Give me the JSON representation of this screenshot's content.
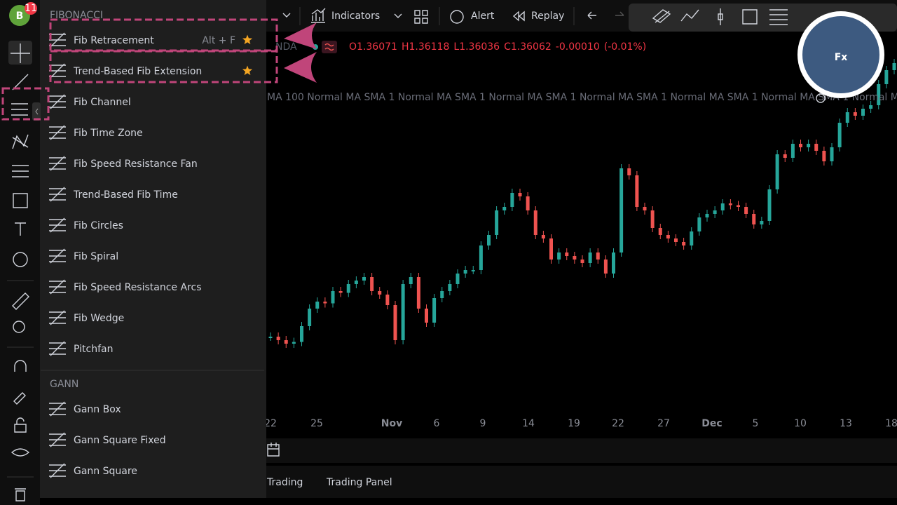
{
  "user": {
    "avatar": "B",
    "notifications": "11"
  },
  "toolbar": {
    "indicators": "Indicators",
    "alert": "Alert",
    "replay": "Replay"
  },
  "menu": {
    "sections": [
      {
        "title": "FIBONACCI",
        "items": [
          {
            "label": "Fib Retracement",
            "shortcut": "Alt + F",
            "favorite": true
          },
          {
            "label": "Trend-Based Fib Extension",
            "favorite": true
          },
          {
            "label": "Fib Channel",
            "favorite": false
          },
          {
            "label": "Fib Time Zone",
            "favorite": false
          },
          {
            "label": "Fib Speed Resistance Fan",
            "favorite": false
          },
          {
            "label": "Trend-Based Fib Time",
            "favorite": false
          },
          {
            "label": "Fib Circles",
            "favorite": false
          },
          {
            "label": "Fib Spiral",
            "favorite": false
          },
          {
            "label": "Fib Speed Resistance Arcs",
            "favorite": false
          },
          {
            "label": "Fib Wedge",
            "favorite": false
          },
          {
            "label": "Pitchfan",
            "favorite": false
          }
        ]
      },
      {
        "title": "GANN",
        "items": [
          {
            "label": "Gann Box",
            "favorite": false
          },
          {
            "label": "Gann Square Fixed",
            "favorite": false
          },
          {
            "label": "Gann Square",
            "favorite": false
          }
        ]
      }
    ]
  },
  "legend": {
    "symbol": "NDA",
    "open_label": "O",
    "open": "1.36071",
    "high_label": "H",
    "high": "1.36118",
    "low_label": "L",
    "low": "1.36036",
    "close_label": "C",
    "close": "1.36062",
    "change": "-0.00010",
    "change_percent": "(-0.01%)"
  },
  "indicator_text": "MA 100 Normal MA SMA 1 Normal MA SMA 1 Normal MA SMA 1 Normal MA SMA 1 Normal MA SMA 1 Normal MA SMA 1 Normal MA SMA 1 No",
  "chart": {
    "closes": [
      1.3294,
      1.329,
      1.3286,
      1.3288,
      1.3306,
      1.3326,
      1.3334,
      1.3332,
      1.3346,
      1.3344,
      1.3354,
      1.3358,
      1.3362,
      1.3346,
      1.3342,
      1.333,
      1.329,
      1.3354,
      1.3362,
      1.3326,
      1.331,
      1.3338,
      1.3346,
      1.3354,
      1.3366,
      1.337,
      1.337,
      1.3398,
      1.341,
      1.3438,
      1.3442,
      1.3458,
      1.3454,
      1.3438,
      1.341,
      1.3406,
      1.3382,
      1.339,
      1.3386,
      1.3382,
      1.3378,
      1.339,
      1.3382,
      1.3366,
      1.339,
      1.3486,
      1.3478,
      1.3442,
      1.3438,
      1.3418,
      1.341,
      1.3406,
      1.3402,
      1.3398,
      1.3414,
      1.343,
      1.3434,
      1.3438,
      1.3446,
      1.3444,
      1.3442,
      1.3434,
      1.3422,
      1.3426,
      1.3462,
      1.3502,
      1.3498,
      1.3514,
      1.351,
      1.3514,
      1.3506,
      1.3494,
      1.351,
      1.3538,
      1.355,
      1.3546,
      1.3554,
      1.3558,
      1.3582,
      1.3598,
      1.3606
    ],
    "time_labels": [
      "22",
      "25",
      "Nov",
      "6",
      "9",
      "14",
      "19",
      "22",
      "27",
      "Dec",
      "5",
      "10",
      "13",
      "18"
    ]
  },
  "bottom_tabs": [
    "Trading",
    "Trading Panel"
  ],
  "logo": "Fx"
}
